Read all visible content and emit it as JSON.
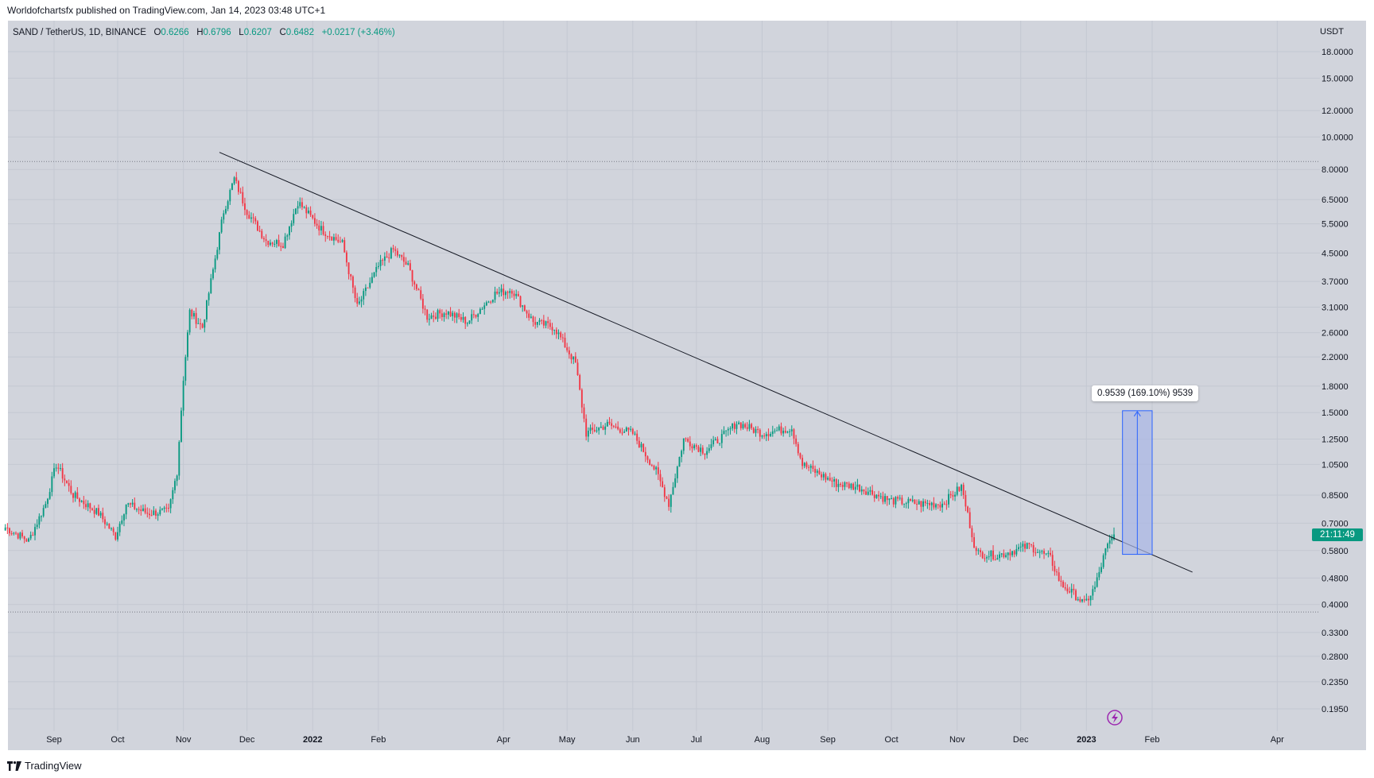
{
  "header": {
    "published": "Worldofchartsfx published on TradingView.com, Jan 14, 2023 03:48 UTC+1"
  },
  "legend": {
    "symbol": "SAND / TetherUS, 1D, BINANCE",
    "o_label": "O",
    "o_value": "0.6266",
    "h_label": "H",
    "h_value": "0.6796",
    "l_label": "L",
    "l_value": "0.6207",
    "c_label": "C",
    "c_value": "0.6482",
    "change": "+0.0217 (+3.46%)"
  },
  "price_axis": {
    "unit": "USDT",
    "countdown": "21:11:49"
  },
  "measure": {
    "label": "0.9539 (169.10%) 9539"
  },
  "footer": {
    "brand": "TradingView"
  },
  "colors": {
    "up": "#089981",
    "down": "#f23645",
    "background": "#d1d4dc",
    "trendline": "#131722",
    "measure_fill": "#aab6e6",
    "measure_line": "#2962ff",
    "grid": "#c4c8d2"
  },
  "chart_data": {
    "type": "candlestick",
    "title": "SAND / TetherUS, 1D, BINANCE",
    "y_scale": "log",
    "y_ticks": [
      0.195,
      0.235,
      0.28,
      0.33,
      0.4,
      0.48,
      0.58,
      0.7,
      0.85,
      1.05,
      1.25,
      1.5,
      1.8,
      2.2,
      2.6,
      3.1,
      3.7,
      4.5,
      5.5,
      6.5,
      8.0,
      10.0,
      12.0,
      15.0,
      18.0
    ],
    "y_tick_labels": [
      "0.1950",
      "0.2350",
      "0.2800",
      "0.3300",
      "0.4000",
      "0.4800",
      "0.5800",
      "0.7000",
      "0.8500",
      "1.0500",
      "1.2500",
      "1.5000",
      "1.8000",
      "2.2000",
      "2.6000",
      "3.1000",
      "3.7000",
      "4.5000",
      "5.5000",
      "6.5000",
      "8.0000",
      "10.0000",
      "12.0000",
      "15.0000",
      "18.0000"
    ],
    "x_ticks": [
      {
        "label": "Sep",
        "date": "2021-09-01",
        "bold": false
      },
      {
        "label": "Oct",
        "date": "2021-10-01",
        "bold": false
      },
      {
        "label": "Nov",
        "date": "2021-11-01",
        "bold": false
      },
      {
        "label": "Dec",
        "date": "2021-12-01",
        "bold": false
      },
      {
        "label": "2022",
        "date": "2022-01-01",
        "bold": true
      },
      {
        "label": "Feb",
        "date": "2022-02-01",
        "bold": false
      },
      {
        "label": "Apr",
        "date": "2022-04-01",
        "bold": false
      },
      {
        "label": "May",
        "date": "2022-05-01",
        "bold": false
      },
      {
        "label": "Jun",
        "date": "2022-06-01",
        "bold": false
      },
      {
        "label": "Jul",
        "date": "2022-07-01",
        "bold": false
      },
      {
        "label": "Aug",
        "date": "2022-08-01",
        "bold": false
      },
      {
        "label": "Sep",
        "date": "2022-09-01",
        "bold": false
      },
      {
        "label": "Oct",
        "date": "2022-10-01",
        "bold": false
      },
      {
        "label": "Nov",
        "date": "2022-11-01",
        "bold": false
      },
      {
        "label": "Dec",
        "date": "2022-12-01",
        "bold": false
      },
      {
        "label": "2023",
        "date": "2023-01-01",
        "bold": true
      },
      {
        "label": "Feb",
        "date": "2023-02-01",
        "bold": false
      },
      {
        "label": "Apr",
        "date": "2023-04-01",
        "bold": false
      }
    ],
    "close_path": [
      {
        "date": "2021-08-09",
        "close": 0.68
      },
      {
        "date": "2021-08-20",
        "close": 0.62
      },
      {
        "date": "2021-08-28",
        "close": 0.8
      },
      {
        "date": "2021-09-02",
        "close": 1.05
      },
      {
        "date": "2021-09-10",
        "close": 0.85
      },
      {
        "date": "2021-09-22",
        "close": 0.75
      },
      {
        "date": "2021-09-30",
        "close": 0.64
      },
      {
        "date": "2021-10-05",
        "close": 0.8
      },
      {
        "date": "2021-10-15",
        "close": 0.75
      },
      {
        "date": "2021-10-25",
        "close": 0.76
      },
      {
        "date": "2021-10-29",
        "close": 1.0
      },
      {
        "date": "2021-11-01",
        "close": 1.9
      },
      {
        "date": "2021-11-04",
        "close": 3.0
      },
      {
        "date": "2021-11-10",
        "close": 2.7
      },
      {
        "date": "2021-11-15",
        "close": 4.0
      },
      {
        "date": "2021-11-20",
        "close": 6.0
      },
      {
        "date": "2021-11-25",
        "close": 7.5
      },
      {
        "date": "2021-12-01",
        "close": 6.0
      },
      {
        "date": "2021-12-10",
        "close": 4.9
      },
      {
        "date": "2021-12-18",
        "close": 4.8
      },
      {
        "date": "2021-12-25",
        "close": 6.4
      },
      {
        "date": "2022-01-05",
        "close": 5.3
      },
      {
        "date": "2022-01-15",
        "close": 4.8
      },
      {
        "date": "2022-01-22",
        "close": 3.1
      },
      {
        "date": "2022-02-01",
        "close": 4.1
      },
      {
        "date": "2022-02-08",
        "close": 4.6
      },
      {
        "date": "2022-02-15",
        "close": 4.1
      },
      {
        "date": "2022-02-24",
        "close": 2.9
      },
      {
        "date": "2022-03-05",
        "close": 3.0
      },
      {
        "date": "2022-03-15",
        "close": 2.8
      },
      {
        "date": "2022-03-28",
        "close": 3.4
      },
      {
        "date": "2022-04-05",
        "close": 3.5
      },
      {
        "date": "2022-04-15",
        "close": 2.8
      },
      {
        "date": "2022-04-25",
        "close": 2.7
      },
      {
        "date": "2022-05-05",
        "close": 2.1
      },
      {
        "date": "2022-05-10",
        "close": 1.3
      },
      {
        "date": "2022-05-20",
        "close": 1.38
      },
      {
        "date": "2022-06-01",
        "close": 1.3
      },
      {
        "date": "2022-06-12",
        "close": 1.0
      },
      {
        "date": "2022-06-18",
        "close": 0.8
      },
      {
        "date": "2022-06-25",
        "close": 1.25
      },
      {
        "date": "2022-07-05",
        "close": 1.15
      },
      {
        "date": "2022-07-15",
        "close": 1.3
      },
      {
        "date": "2022-07-20",
        "close": 1.4
      },
      {
        "date": "2022-08-01",
        "close": 1.3
      },
      {
        "date": "2022-08-15",
        "close": 1.35
      },
      {
        "date": "2022-08-20",
        "close": 1.05
      },
      {
        "date": "2022-09-05",
        "close": 0.92
      },
      {
        "date": "2022-09-15",
        "close": 0.9
      },
      {
        "date": "2022-09-30",
        "close": 0.82
      },
      {
        "date": "2022-10-15",
        "close": 0.8
      },
      {
        "date": "2022-10-25",
        "close": 0.8
      },
      {
        "date": "2022-11-03",
        "close": 0.9
      },
      {
        "date": "2022-11-08",
        "close": 0.65
      },
      {
        "date": "2022-11-10",
        "close": 0.57
      },
      {
        "date": "2022-11-20",
        "close": 0.56
      },
      {
        "date": "2022-12-05",
        "close": 0.6
      },
      {
        "date": "2022-12-15",
        "close": 0.55
      },
      {
        "date": "2022-12-20",
        "close": 0.46
      },
      {
        "date": "2022-12-28",
        "close": 0.42
      },
      {
        "date": "2022-12-31",
        "close": 0.4
      },
      {
        "date": "2023-01-05",
        "close": 0.45
      },
      {
        "date": "2023-01-10",
        "close": 0.58
      },
      {
        "date": "2023-01-14",
        "close": 0.6482
      }
    ],
    "last_candle": {
      "date": "2023-01-14",
      "open": 0.6266,
      "high": 0.6796,
      "low": 0.6207,
      "close": 0.6482
    },
    "trendline": [
      {
        "date": "2021-11-18",
        "price": 9.0
      },
      {
        "date": "2023-02-20",
        "price": 0.5
      }
    ],
    "horizontal_levels": [
      8.45,
      0.38
    ],
    "measurement": {
      "from_date": "2023-01-18",
      "to_date": "2023-02-01",
      "low": 0.565,
      "high": 1.519,
      "change": 0.9539,
      "percent": 169.1
    }
  }
}
